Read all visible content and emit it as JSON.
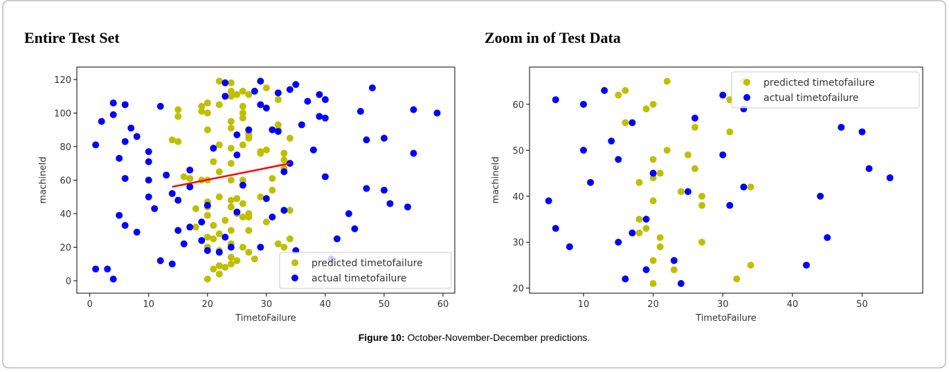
{
  "figure": {
    "caption_label": "Figure 10:",
    "caption_text": "October-November-December predictions."
  },
  "chart_data": [
    {
      "type": "scatter",
      "title": "Entire Test Set",
      "x_label": "TimetoFailure",
      "y_label": "machineId",
      "xlim": [
        -2.2,
        62
      ],
      "ylim": [
        -7.4,
        127.4
      ],
      "xticks": [
        0,
        10,
        20,
        30,
        40,
        50,
        60
      ],
      "yticks": [
        0,
        20,
        40,
        60,
        80,
        100,
        120
      ],
      "grid": false,
      "legend": "lower right",
      "series": [
        {
          "name": "predicted timetofailure",
          "color": "#bfbf00",
          "x": [
            14,
            15,
            15,
            15,
            16,
            17,
            17,
            19,
            19,
            20,
            20,
            20,
            19,
            20,
            20,
            20,
            20,
            19,
            18,
            18,
            20,
            20,
            20,
            21,
            22,
            22,
            22,
            21,
            22,
            22,
            22,
            21,
            22,
            21,
            22,
            22,
            23,
            24,
            24,
            24,
            24,
            24,
            24,
            24,
            24,
            24,
            24,
            23,
            24,
            24,
            24,
            24,
            25,
            25,
            26,
            26,
            26,
            26,
            26,
            26,
            26,
            26,
            25,
            25,
            26,
            27,
            27,
            27,
            27,
            27,
            27,
            27,
            27,
            28,
            29,
            29,
            30,
            30,
            31,
            31,
            32,
            32,
            32,
            32,
            33,
            33,
            33,
            34,
            34,
            34,
            33,
            30,
            29
          ],
          "values": [
            84,
            83,
            102,
            98,
            62,
            61,
            56,
            104,
            101,
            106,
            100,
            90,
            60,
            60,
            47,
            44,
            39,
            35,
            43,
            32,
            26,
            20,
            1,
            33,
            119,
            105,
            81,
            71,
            65,
            50,
            28,
            25,
            18,
            7,
            9,
            4,
            8,
            118,
            113,
            110,
            95,
            91,
            79,
            70,
            60,
            48,
            44,
            36,
            30,
            22,
            14,
            10,
            12,
            111,
            113,
            104,
            100,
            97,
            81,
            60,
            46,
            38,
            49,
            40,
            20,
            111,
            88,
            85,
            87,
            40,
            38,
            30,
            17,
            13,
            77,
            76,
            115,
            78,
            61,
            54,
            93,
            90,
            22,
            108,
            76,
            72,
            67,
            85,
            42,
            25,
            20,
            35,
            50
          ]
        },
        {
          "name": "actual timetofailure",
          "color": "#0000ff",
          "x": [
            1,
            1,
            2,
            3,
            4,
            4,
            4,
            5,
            5,
            6,
            6,
            6,
            6,
            7,
            8,
            8,
            10,
            10,
            10,
            10,
            11,
            12,
            12,
            13,
            14,
            14,
            15,
            15,
            16,
            17,
            17,
            17,
            19,
            19,
            20,
            20,
            21,
            22,
            23,
            23,
            23,
            24,
            25,
            25,
            25,
            26,
            27,
            28,
            29,
            29,
            29,
            30,
            30,
            31,
            31,
            32,
            32,
            33,
            33,
            34,
            34,
            35,
            35,
            36,
            37,
            38,
            39,
            39,
            40,
            40,
            40,
            41,
            42,
            44,
            45,
            46,
            47,
            47,
            48,
            50,
            50,
            51,
            54,
            55,
            55,
            59
          ],
          "values": [
            81,
            7,
            95,
            7,
            106,
            99,
            1,
            73,
            39,
            105,
            83,
            61,
            33,
            91,
            86,
            29,
            77,
            71,
            60,
            50,
            43,
            104,
            12,
            63,
            52,
            10,
            48,
            30,
            22,
            56,
            66,
            32,
            24,
            35,
            45,
            18,
            79,
            17,
            118,
            110,
            26,
            20,
            87,
            75,
            41,
            57,
            90,
            113,
            119,
            105,
            20,
            103,
            49,
            90,
            38,
            89,
            112,
            65,
            42,
            114,
            70,
            117,
            18,
            93,
            107,
            78,
            111,
            98,
            108,
            97,
            62,
            13,
            25,
            40,
            31,
            101,
            84,
            55,
            115,
            85,
            54,
            46,
            44,
            102,
            76,
            100
          ]
        }
      ],
      "trend_line": {
        "color": "#ff0000",
        "x": [
          14,
          34
        ],
        "y": [
          56,
          70
        ]
      }
    },
    {
      "type": "scatter",
      "title": "Zoom in of Test Data",
      "x_label": "TimetoFailure",
      "y_label": "machineId",
      "xlim": [
        2.25,
        58.7
      ],
      "ylim": [
        18.9,
        68.1
      ],
      "xticks": [
        10,
        20,
        30,
        40,
        50
      ],
      "yticks": [
        20,
        30,
        40,
        50,
        60
      ],
      "grid": false,
      "legend": "upper right",
      "series": [
        {
          "name": "predicted timetofailure",
          "color": "#bfbf00",
          "x": [
            15,
            16,
            16,
            18,
            19,
            20,
            22,
            22,
            20,
            21,
            20,
            20,
            18,
            19,
            18,
            21,
            21,
            20,
            20,
            25,
            26,
            26,
            24,
            27,
            27,
            27,
            23,
            31,
            31,
            33,
            34,
            34,
            32
          ],
          "values": [
            62,
            63,
            56,
            43,
            59,
            60,
            65,
            50,
            48,
            45,
            44,
            39,
            35,
            33,
            32,
            31,
            29,
            26,
            21,
            49,
            55,
            46,
            41,
            40,
            38,
            30,
            24,
            61,
            54,
            65,
            42,
            25,
            22
          ]
        },
        {
          "name": "actual timetofailure",
          "color": "#0000ff",
          "x": [
            5,
            6,
            6,
            8,
            10,
            10,
            11,
            13,
            14,
            15,
            15,
            17,
            17,
            19,
            19,
            20,
            23,
            24,
            25,
            26,
            30,
            30,
            31,
            33,
            33,
            16,
            42,
            44,
            45,
            47,
            50,
            51,
            54
          ],
          "values": [
            39,
            61,
            33,
            29,
            60,
            50,
            43,
            63,
            52,
            48,
            30,
            56,
            32,
            24,
            35,
            45,
            26,
            21,
            41,
            57,
            62,
            49,
            38,
            59,
            42,
            22,
            25,
            40,
            31,
            55,
            54,
            46,
            44
          ]
        }
      ]
    }
  ]
}
